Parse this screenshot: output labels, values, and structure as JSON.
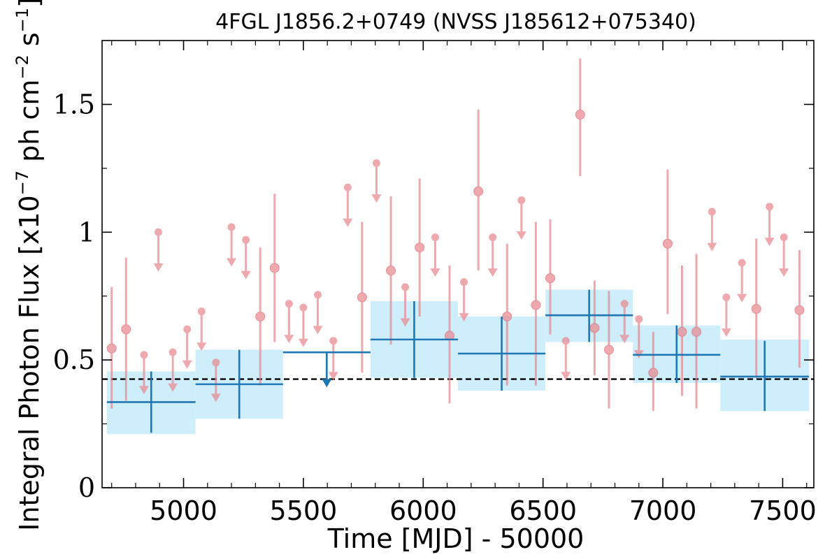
{
  "chart_data": {
    "type": "scatter",
    "title": "4FGL J1856.2+0749 (NVSS J185612+075340)",
    "xlabel": "Time [MJD] - 50000",
    "ylabel": {
      "prefix": "Integral Photon Flux [x10",
      "exp1": "−7",
      "mid": " ph cm",
      "exp2": "−2",
      "mid2": " s",
      "exp3": "−1",
      "suffix": "]"
    },
    "xlim": [
      4660,
      7630
    ],
    "ylim": [
      0,
      1.75
    ],
    "xticks": [
      {
        "value": 5000,
        "label": "5000"
      },
      {
        "value": 5500,
        "label": "5500"
      },
      {
        "value": 6000,
        "label": "6000"
      },
      {
        "value": 6500,
        "label": "6500"
      },
      {
        "value": 7000,
        "label": "7000"
      },
      {
        "value": 7500,
        "label": "7500"
      }
    ],
    "yticks": [
      {
        "value": 0,
        "label": "0"
      },
      {
        "value": 0.5,
        "label": "0.5"
      },
      {
        "value": 1,
        "label": "1"
      },
      {
        "value": 1.5,
        "label": "1.5"
      }
    ],
    "reference_line": 0.425,
    "colors": {
      "points": "#e8858c",
      "bins": "#1f77b4",
      "band": "#cfeefc",
      "reference": "#000000"
    },
    "short_bin_detections": [
      {
        "x": 4700,
        "y": 0.545,
        "lo": 0.31,
        "hi": 0.785
      },
      {
        "x": 4760,
        "y": 0.62,
        "lo": 0.34,
        "hi": 0.9
      },
      {
        "x": 5320,
        "y": 0.67,
        "lo": 0.4,
        "hi": 0.94
      },
      {
        "x": 5380,
        "y": 0.86,
        "lo": 0.57,
        "hi": 1.15
      },
      {
        "x": 5745,
        "y": 0.745,
        "lo": 0.45,
        "hi": 1.04
      },
      {
        "x": 5865,
        "y": 0.85,
        "lo": 0.56,
        "hi": 1.14
      },
      {
        "x": 5985,
        "y": 0.94,
        "lo": 0.67,
        "hi": 1.21
      },
      {
        "x": 6110,
        "y": 0.595,
        "lo": 0.33,
        "hi": 0.87
      },
      {
        "x": 6230,
        "y": 1.16,
        "lo": 0.85,
        "hi": 1.48
      },
      {
        "x": 6350,
        "y": 0.67,
        "lo": 0.4,
        "hi": 0.955
      },
      {
        "x": 6470,
        "y": 0.715,
        "lo": 0.4,
        "hi": 1.04
      },
      {
        "x": 6530,
        "y": 0.82,
        "lo": 0.6,
        "hi": 1.05
      },
      {
        "x": 6655,
        "y": 1.46,
        "lo": 1.22,
        "hi": 1.68
      },
      {
        "x": 6715,
        "y": 0.625,
        "lo": 0.44,
        "hi": 0.81
      },
      {
        "x": 6775,
        "y": 0.54,
        "lo": 0.31,
        "hi": 0.77
      },
      {
        "x": 6960,
        "y": 0.45,
        "lo": 0.3,
        "hi": 0.61
      },
      {
        "x": 7020,
        "y": 0.955,
        "lo": 0.68,
        "hi": 1.245
      },
      {
        "x": 7080,
        "y": 0.61,
        "lo": 0.36,
        "hi": 0.87
      },
      {
        "x": 7140,
        "y": 0.61,
        "lo": 0.31,
        "hi": 0.915
      },
      {
        "x": 7390,
        "y": 0.7,
        "lo": 0.43,
        "hi": 0.975
      },
      {
        "x": 7570,
        "y": 0.695,
        "lo": 0.47,
        "hi": 0.93
      }
    ],
    "short_bin_upper_limits": [
      {
        "x": 4835,
        "y": 0.52
      },
      {
        "x": 4895,
        "y": 1.0
      },
      {
        "x": 4955,
        "y": 0.53
      },
      {
        "x": 5015,
        "y": 0.62
      },
      {
        "x": 5075,
        "y": 0.69
      },
      {
        "x": 5135,
        "y": 0.49
      },
      {
        "x": 5200,
        "y": 1.02
      },
      {
        "x": 5260,
        "y": 0.97
      },
      {
        "x": 5440,
        "y": 0.72
      },
      {
        "x": 5500,
        "y": 0.705
      },
      {
        "x": 5560,
        "y": 0.755
      },
      {
        "x": 5625,
        "y": 0.575
      },
      {
        "x": 5685,
        "y": 1.175
      },
      {
        "x": 5805,
        "y": 1.27
      },
      {
        "x": 5925,
        "y": 0.785
      },
      {
        "x": 6050,
        "y": 0.98
      },
      {
        "x": 6170,
        "y": 0.805
      },
      {
        "x": 6290,
        "y": 0.98
      },
      {
        "x": 6410,
        "y": 1.125
      },
      {
        "x": 6595,
        "y": 0.575
      },
      {
        "x": 6840,
        "y": 0.72
      },
      {
        "x": 6900,
        "y": 0.66
      },
      {
        "x": 7205,
        "y": 1.08
      },
      {
        "x": 7265,
        "y": 0.745
      },
      {
        "x": 7330,
        "y": 0.88
      },
      {
        "x": 7445,
        "y": 1.1
      },
      {
        "x": 7505,
        "y": 0.98
      }
    ],
    "long_bins": [
      {
        "x0": 4680,
        "x1": 5050,
        "y": 0.335,
        "lo": 0.215,
        "hi": 0.455,
        "band_lo": 0.21,
        "band_hi": 0.455,
        "upper_limit": false
      },
      {
        "x0": 5050,
        "x1": 5415,
        "y": 0.405,
        "lo": 0.27,
        "hi": 0.54,
        "band_lo": 0.27,
        "band_hi": 0.54,
        "upper_limit": false
      },
      {
        "x0": 5415,
        "x1": 5780,
        "y": 0.53,
        "upper_limit": true
      },
      {
        "x0": 5780,
        "x1": 6145,
        "y": 0.58,
        "lo": 0.43,
        "hi": 0.73,
        "band_lo": 0.43,
        "band_hi": 0.73,
        "upper_limit": false
      },
      {
        "x0": 6145,
        "x1": 6510,
        "y": 0.525,
        "lo": 0.38,
        "hi": 0.67,
        "band_lo": 0.38,
        "band_hi": 0.67,
        "upper_limit": false
      },
      {
        "x0": 6510,
        "x1": 6875,
        "y": 0.675,
        "lo": 0.57,
        "hi": 0.775,
        "band_lo": 0.57,
        "band_hi": 0.775,
        "upper_limit": false
      },
      {
        "x0": 6875,
        "x1": 7240,
        "y": 0.52,
        "lo": 0.41,
        "hi": 0.635,
        "band_lo": 0.41,
        "band_hi": 0.635,
        "upper_limit": false
      },
      {
        "x0": 7240,
        "x1": 7610,
        "y": 0.435,
        "lo": 0.3,
        "hi": 0.575,
        "band_lo": 0.3,
        "band_hi": 0.58,
        "upper_limit": false
      }
    ]
  }
}
